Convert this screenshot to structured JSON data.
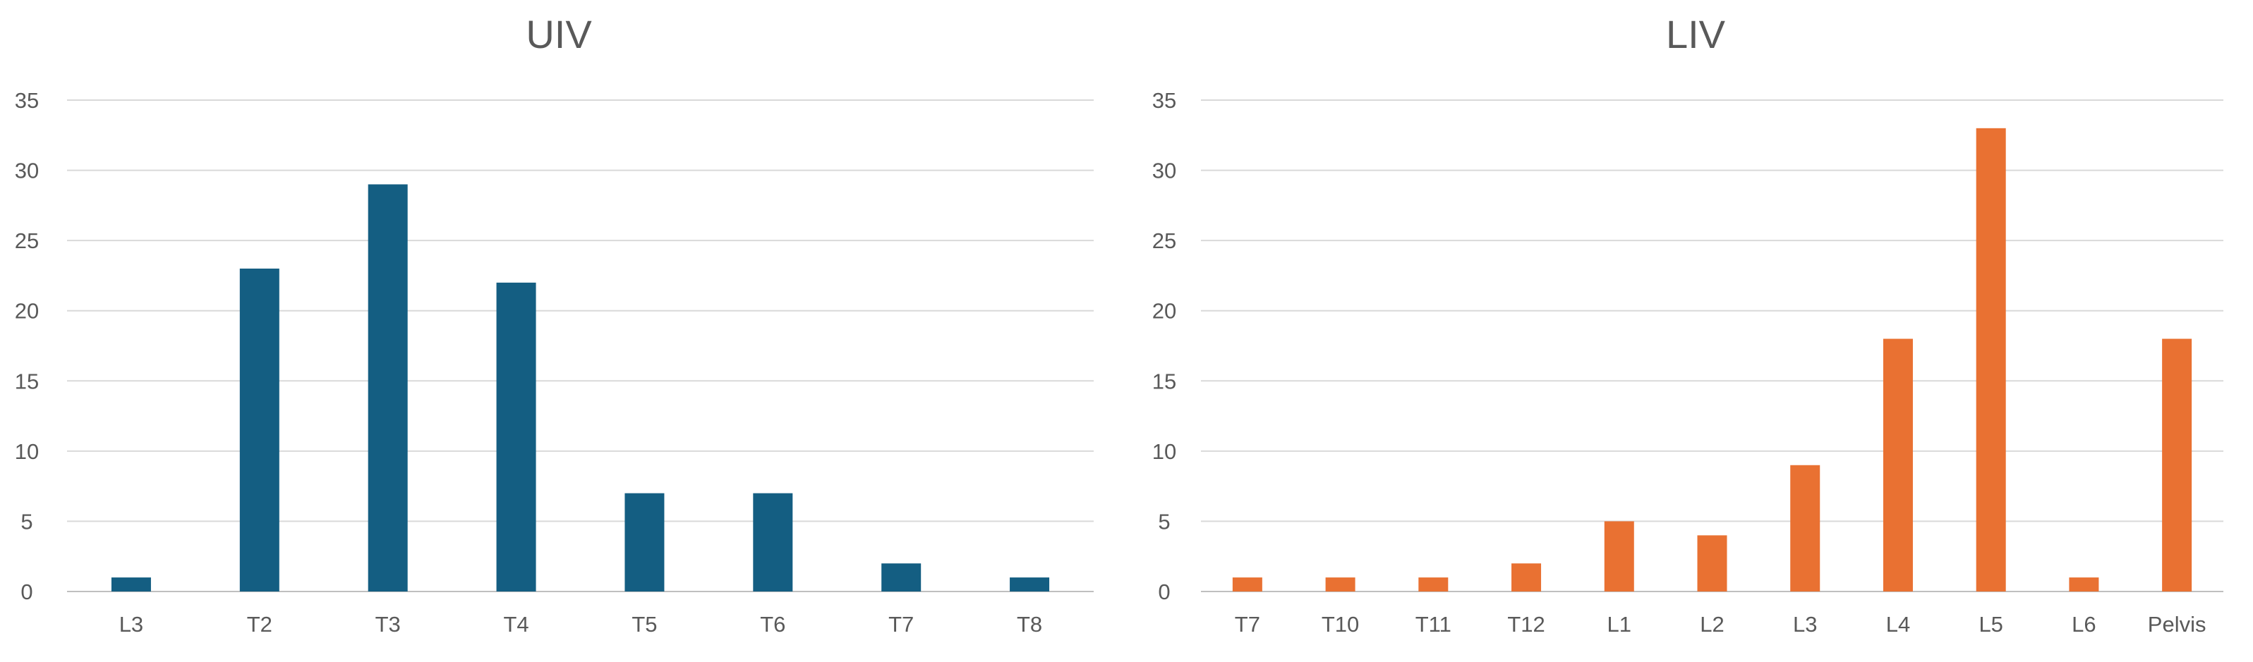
{
  "chart_data": [
    {
      "type": "bar",
      "title": "UIV",
      "categories": [
        "L3",
        "T2",
        "T3",
        "T4",
        "T5",
        "T6",
        "T7",
        "T8"
      ],
      "values": [
        1,
        23,
        29,
        22,
        7,
        7,
        2,
        1
      ],
      "ylim": [
        0,
        35
      ],
      "yticks": [
        0,
        5,
        10,
        15,
        20,
        25,
        30,
        35
      ],
      "color": "#145e82",
      "grid": true,
      "xlabel": "",
      "ylabel": ""
    },
    {
      "type": "bar",
      "title": "LIV",
      "categories": [
        "T7",
        "T10",
        "T11",
        "T12",
        "L1",
        "L2",
        "L3",
        "L4",
        "L5",
        "L6",
        "Pelvis"
      ],
      "values": [
        1,
        1,
        1,
        2,
        5,
        4,
        9,
        18,
        33,
        1,
        18
      ],
      "ylim": [
        0,
        35
      ],
      "yticks": [
        0,
        5,
        10,
        15,
        20,
        25,
        30,
        35
      ],
      "color": "#e97132",
      "grid": true,
      "xlabel": "",
      "ylabel": ""
    }
  ]
}
